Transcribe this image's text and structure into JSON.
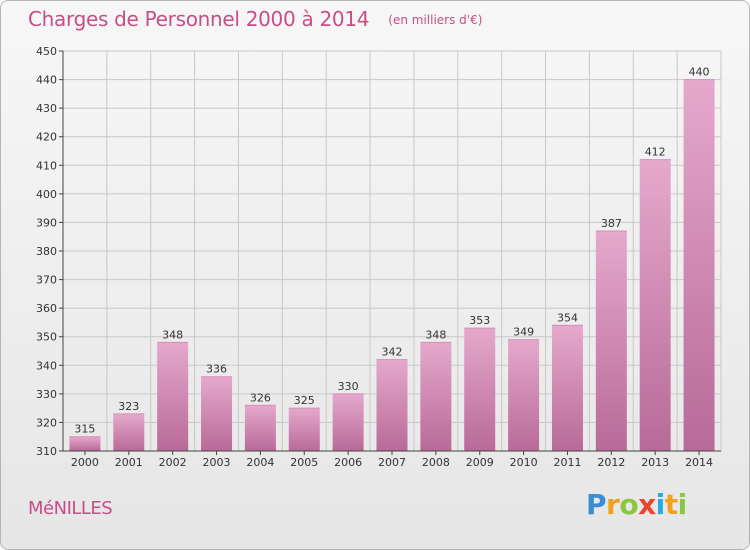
{
  "header": {
    "title": "Charges de Personnel 2000 à 2014",
    "subtitle": "(en milliers d'€)"
  },
  "footer": {
    "commune": "MéNILLES",
    "logo": "Proxiti"
  },
  "colors": {
    "bar_top": "#e5a9cc",
    "bar_bottom": "#b86a98",
    "text_accent": "#c74e86",
    "grid": "#c8c8c8"
  },
  "chart_data": {
    "type": "bar",
    "title": "Charges de Personnel 2000 à 2014",
    "subtitle": "(en milliers d'€)",
    "xlabel": "",
    "ylabel": "",
    "categories": [
      "2000",
      "2001",
      "2002",
      "2003",
      "2004",
      "2005",
      "2006",
      "2007",
      "2008",
      "2009",
      "2010",
      "2011",
      "2012",
      "2013",
      "2014"
    ],
    "values": [
      315,
      323,
      348,
      336,
      326,
      325,
      330,
      342,
      348,
      353,
      349,
      354,
      387,
      412,
      440
    ],
    "ylim": [
      310,
      450
    ],
    "yticks": [
      310,
      320,
      330,
      340,
      350,
      360,
      370,
      380,
      390,
      400,
      410,
      420,
      430,
      440,
      450
    ],
    "grid": true,
    "data_labels": true
  }
}
